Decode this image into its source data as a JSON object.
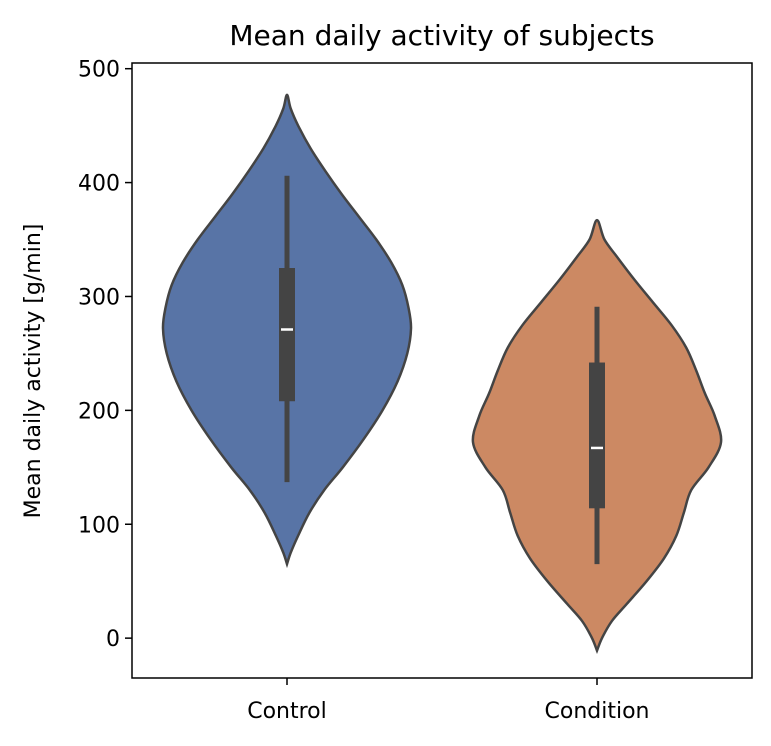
{
  "chart_data": {
    "type": "violin",
    "title": "Mean daily activity of subjects",
    "xlabel": "",
    "ylabel": "Mean daily activity [g/min]",
    "categories": [
      "Control",
      "Condition"
    ],
    "ylim": [
      -35,
      505
    ],
    "yticks": [
      0,
      100,
      200,
      300,
      400,
      500
    ],
    "grid": false,
    "series": [
      {
        "category": "Control",
        "color": "#5874a6",
        "min": 65,
        "max": 477,
        "q1": 208,
        "median": 271,
        "q3": 325,
        "whisker_low": 137,
        "whisker_high": 406,
        "density": [
          [
            65,
            0.0
          ],
          [
            75,
            0.03
          ],
          [
            90,
            0.09
          ],
          [
            110,
            0.18
          ],
          [
            130,
            0.3
          ],
          [
            150,
            0.45
          ],
          [
            175,
            0.62
          ],
          [
            200,
            0.77
          ],
          [
            225,
            0.89
          ],
          [
            250,
            0.97
          ],
          [
            272,
            1.0
          ],
          [
            290,
            0.98
          ],
          [
            310,
            0.93
          ],
          [
            330,
            0.84
          ],
          [
            350,
            0.72
          ],
          [
            370,
            0.58
          ],
          [
            390,
            0.44
          ],
          [
            410,
            0.31
          ],
          [
            430,
            0.19
          ],
          [
            450,
            0.09
          ],
          [
            465,
            0.03
          ],
          [
            477,
            0.0
          ]
        ]
      },
      {
        "category": "Condition",
        "color": "#cc8963",
        "min": -11,
        "max": 367,
        "q1": 114,
        "median": 167,
        "q3": 242,
        "whisker_low": 65,
        "whisker_high": 291,
        "density": [
          [
            -11,
            0.0
          ],
          [
            0,
            0.04
          ],
          [
            15,
            0.12
          ],
          [
            30,
            0.24
          ],
          [
            50,
            0.4
          ],
          [
            70,
            0.54
          ],
          [
            90,
            0.64
          ],
          [
            110,
            0.7
          ],
          [
            130,
            0.76
          ],
          [
            150,
            0.9
          ],
          [
            172,
            1.0
          ],
          [
            195,
            0.95
          ],
          [
            215,
            0.87
          ],
          [
            235,
            0.8
          ],
          [
            255,
            0.72
          ],
          [
            275,
            0.6
          ],
          [
            295,
            0.45
          ],
          [
            315,
            0.3
          ],
          [
            335,
            0.16
          ],
          [
            350,
            0.06
          ],
          [
            367,
            0.0
          ]
        ]
      }
    ]
  }
}
